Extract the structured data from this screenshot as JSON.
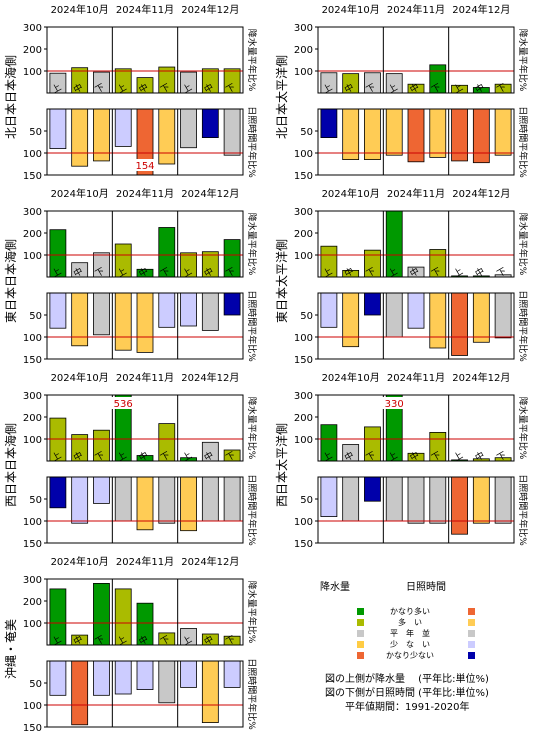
{
  "chart_data": {
    "type": "bar",
    "months": [
      "2024年10月",
      "2024年11月",
      "2024年12月"
    ],
    "periods": [
      "上",
      "中",
      "下",
      "上",
      "中",
      "下",
      "上",
      "中",
      "下"
    ],
    "precip_axis_label": "降水量平年比%",
    "sunshine_axis_label": "日照時間平年比%",
    "precip_ticks_small": [
      100,
      200,
      300
    ],
    "sunshine_ticks": [
      50,
      100,
      150
    ],
    "panels": [
      {
        "name": "北日本日本海側",
        "ptop": 300,
        "precip": [
          90,
          115,
          95,
          110,
          70,
          118,
          95,
          110,
          110
        ],
        "precip_class": [
          3,
          2,
          3,
          2,
          2,
          2,
          3,
          2,
          2
        ],
        "sunshine": [
          90,
          130,
          118,
          85,
          154,
          125,
          88,
          65,
          105
        ],
        "sunshine_class": [
          4,
          2,
          2,
          4,
          1,
          2,
          3,
          5,
          3
        ],
        "sunshine_labels": [
          {
            "index": 4,
            "text": "154"
          }
        ]
      },
      {
        "name": "北日本太平洋側",
        "ptop": 300,
        "precip": [
          92,
          88,
          92,
          88,
          40,
          128,
          35,
          25,
          40
        ],
        "precip_class": [
          3,
          2,
          3,
          3,
          2,
          1,
          2,
          1,
          2
        ],
        "sunshine": [
          65,
          115,
          115,
          105,
          120,
          110,
          118,
          122,
          105
        ],
        "sunshine_class": [
          5,
          2,
          2,
          2,
          1,
          2,
          1,
          1,
          2
        ],
        "sunshine_labels": []
      },
      {
        "name": "東日本日本海側",
        "ptop": 300,
        "precip": [
          215,
          65,
          110,
          150,
          35,
          225,
          110,
          115,
          170
        ],
        "precip_class": [
          1,
          3,
          3,
          2,
          1,
          1,
          2,
          2,
          1
        ],
        "sunshine": [
          80,
          120,
          95,
          130,
          135,
          78,
          75,
          85,
          50
        ],
        "sunshine_class": [
          4,
          2,
          3,
          2,
          2,
          4,
          4,
          3,
          5
        ],
        "sunshine_labels": []
      },
      {
        "name": "東日本太平洋側",
        "ptop": 300,
        "precip": [
          140,
          30,
          122,
          305,
          45,
          125,
          5,
          5,
          10
        ],
        "precip_class": [
          2,
          2,
          2,
          1,
          3,
          2,
          1,
          1,
          3
        ],
        "sunshine": [
          78,
          122,
          50,
          100,
          80,
          125,
          142,
          112,
          102
        ],
        "sunshine_class": [
          4,
          2,
          5,
          3,
          4,
          2,
          1,
          2,
          3
        ],
        "sunshine_labels": []
      },
      {
        "name": "西日本日本海側",
        "ptop": 300,
        "precip": [
          195,
          120,
          140,
          536,
          25,
          170,
          15,
          85,
          50
        ],
        "precip_class": [
          2,
          2,
          2,
          1,
          1,
          2,
          1,
          3,
          2
        ],
        "sunshine": [
          70,
          105,
          60,
          100,
          120,
          105,
          122,
          100,
          100
        ],
        "sunshine_class": [
          5,
          4,
          4,
          3,
          2,
          3,
          2,
          3,
          3
        ],
        "sunshine_labels": [],
        "precip_labels": [
          {
            "index": 3,
            "text": "536"
          }
        ]
      },
      {
        "name": "西日本太平洋側",
        "ptop": 300,
        "precip": [
          165,
          75,
          155,
          330,
          35,
          130,
          5,
          10,
          15
        ],
        "precip_class": [
          1,
          3,
          2,
          1,
          2,
          2,
          1,
          2,
          2
        ],
        "sunshine": [
          90,
          100,
          55,
          100,
          105,
          105,
          130,
          105,
          105
        ],
        "sunshine_class": [
          4,
          3,
          5,
          3,
          3,
          3,
          1,
          2,
          3
        ],
        "sunshine_labels": [],
        "precip_labels": [
          {
            "index": 3,
            "text": "330"
          }
        ]
      },
      {
        "name": "沖縄・奄美",
        "ptop": 300,
        "precip": [
          255,
          45,
          280,
          255,
          190,
          55,
          75,
          50,
          40
        ],
        "precip_class": [
          1,
          2,
          1,
          2,
          1,
          2,
          3,
          2,
          2
        ],
        "sunshine": [
          78,
          145,
          78,
          75,
          65,
          95,
          60,
          140,
          60
        ],
        "sunshine_class": [
          4,
          1,
          4,
          4,
          4,
          3,
          4,
          2,
          4
        ],
        "sunshine_labels": []
      }
    ],
    "class_colors": {
      "precip": [
        "#000000",
        "#009900",
        "#aabb00",
        "#c8c8c8",
        "#ffcc44",
        "#ffcc44"
      ],
      "sunshine": [
        "#000000",
        "#ee6633",
        "#ffcc55",
        "#c8c8c8",
        "#ccccff",
        "#0000aa"
      ]
    }
  },
  "legend": {
    "precip_header": "降水量",
    "sunshine_header": "日照時間",
    "rows": [
      {
        "label": "かなり多い",
        "precip_color": "#009900",
        "sunshine_color": "#ee6633"
      },
      {
        "label": "多　い",
        "precip_color": "#aabb00",
        "sunshine_color": "#ffcc55"
      },
      {
        "label": "平　年　並",
        "precip_color": "#c8c8c8",
        "sunshine_color": "#c8c8c8"
      },
      {
        "label": "少　な　い",
        "precip_color": "#ffcc44",
        "sunshine_color": "#ccccff"
      },
      {
        "label": "かなり少ない",
        "precip_color": "#ee6633",
        "sunshine_color": "#0000aa"
      }
    ],
    "note1": "図の上側が降水量　 (平年比:単位%)",
    "note2": "図の下側が日照時間 (平年比:単位%)",
    "note3": "平年値期間：1991-2020年"
  }
}
